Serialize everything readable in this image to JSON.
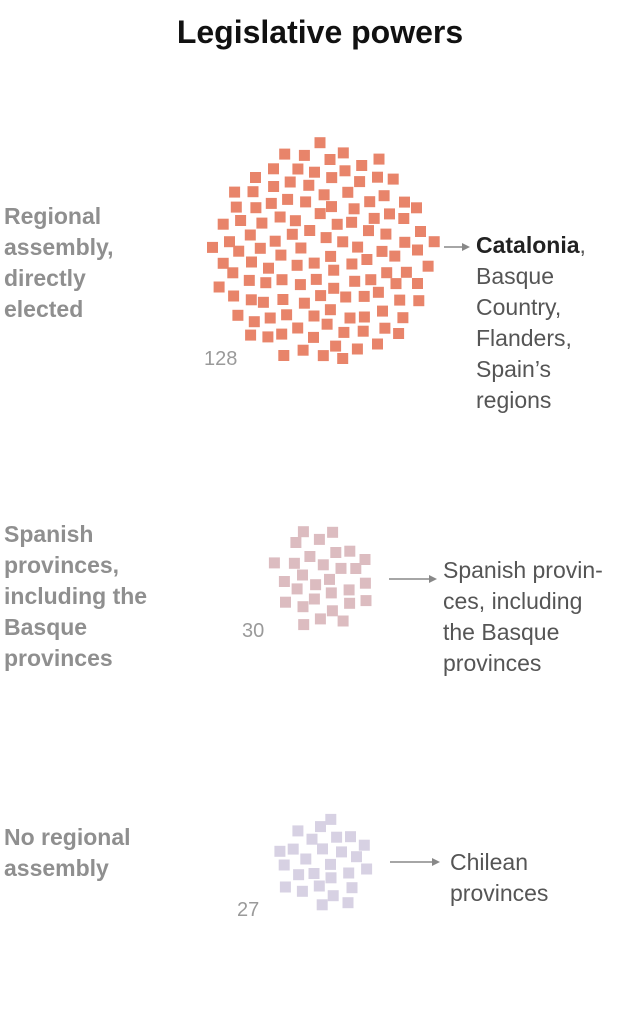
{
  "title": "Legislative powers",
  "colors": {
    "accent_primary": "#e8846a",
    "accent_secondary": "#dcbcc0",
    "accent_tertiary": "#d7d1e3",
    "arrow": "#888888"
  },
  "chart_data": {
    "type": "scatter",
    "title": "Legislative powers",
    "series": [
      {
        "label": [
          "Regional",
          "assembly,",
          "directly",
          "elected"
        ],
        "count": 128,
        "count_label": "128",
        "examples_bold": "Catalonia",
        "examples_rest": [
          ",",
          "Basque",
          "Country,",
          "Flanders,",
          "Spain’s",
          "regions"
        ]
      },
      {
        "label": [
          "Spanish",
          "provinces,",
          "including the",
          "Basque",
          "provinces"
        ],
        "count": 30,
        "count_label": "30",
        "examples": [
          "Spanish provin-",
          "ces, including",
          "the Basque",
          "provinces"
        ]
      },
      {
        "label": [
          "No regional",
          "assembly"
        ],
        "count": 27,
        "count_label": "27",
        "examples": [
          "Chilean",
          "provinces"
        ]
      }
    ]
  }
}
